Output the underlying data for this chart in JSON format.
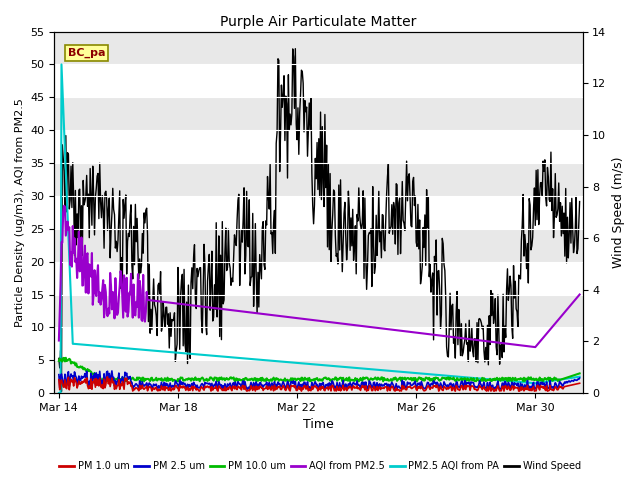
{
  "title": "Purple Air Particulate Matter",
  "xlabel": "Time",
  "ylabel_left": "Particle Density (ug/m3), AQI from PM2.5",
  "ylabel_right": "Wind Speed (m/s)",
  "ylim_left": [
    0,
    55
  ],
  "ylim_right": [
    0,
    14
  ],
  "yticks_left": [
    0,
    5,
    10,
    15,
    20,
    25,
    30,
    35,
    40,
    45,
    50,
    55
  ],
  "yticks_right": [
    0,
    2,
    4,
    6,
    8,
    10,
    12,
    14
  ],
  "station_label": "BC_pa",
  "bg_color": "#ffffff",
  "plot_bg_color": "#ffffff",
  "stripe_color": "#e8e8e8",
  "legend_entries": [
    {
      "label": "PM 1.0 um",
      "color": "#cc0000",
      "lw": 1.2
    },
    {
      "label": "PM 2.5 um",
      "color": "#0000cc",
      "lw": 1.2
    },
    {
      "label": "PM 10.0 um",
      "color": "#00bb00",
      "lw": 1.5
    },
    {
      "label": "AQI from PM2.5",
      "color": "#9900cc",
      "lw": 1.5
    },
    {
      "label": "PM2.5 AQI from PA",
      "color": "#00cccc",
      "lw": 1.5
    },
    {
      "label": "Wind Speed",
      "color": "#000000",
      "lw": 1.0
    }
  ],
  "xstart_day": 13.85,
  "xend_day": 31.6,
  "xticks_days": [
    14,
    18,
    22,
    26,
    30
  ],
  "xtick_labels": [
    "Mar 14",
    "Mar 18",
    "Mar 22",
    "Mar 26",
    "Mar 30"
  ]
}
